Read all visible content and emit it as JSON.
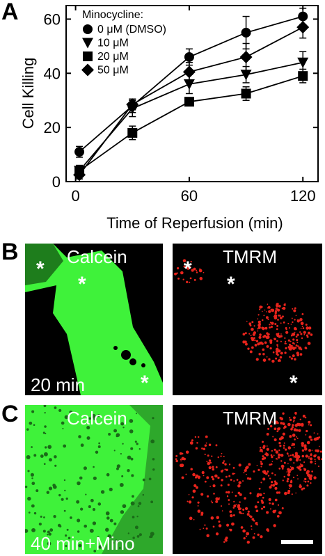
{
  "panel_labels": {
    "a": "A",
    "b": "B",
    "c": "C"
  },
  "chart_data": {
    "type": "line",
    "xlabel": "Time of Reperfusion (min)",
    "ylabel": "Cell Killing",
    "xlim": [
      -5,
      128
    ],
    "ylim": [
      0,
      65
    ],
    "xticks": [
      0,
      60,
      120
    ],
    "yticks": [
      0,
      20,
      40,
      60
    ],
    "x": [
      2,
      30,
      60,
      90,
      120
    ],
    "legend_title": "Minocycline:",
    "legend_position": "top-left",
    "series": [
      {
        "name": "0 μM (DMSO)",
        "marker": "circle",
        "values": [
          11,
          28,
          46,
          55,
          61
        ],
        "errors": [
          2,
          2.5,
          3,
          6,
          3
        ]
      },
      {
        "name": "10 μM",
        "marker": "triangle-down",
        "values": [
          4,
          27,
          36,
          39.5,
          44
        ],
        "errors": [
          2,
          3,
          3.5,
          3,
          4
        ]
      },
      {
        "name": "20 μM",
        "marker": "square",
        "values": [
          4,
          18,
          29.5,
          32.5,
          39
        ],
        "errors": [
          2,
          2.5,
          1.5,
          2.5,
          2.5
        ]
      },
      {
        "name": "50 μM",
        "marker": "diamond",
        "values": [
          2.5,
          28.5,
          40.5,
          46,
          57
        ],
        "errors": [
          1.5,
          2,
          3.5,
          5,
          4
        ]
      }
    ]
  },
  "panel_b": {
    "left_label": "Calcein",
    "right_label": "TMRM",
    "time_label": "20 min",
    "star": "*"
  },
  "panel_c": {
    "left_label": "Calcein",
    "right_label": "TMRM",
    "time_label": "40 min+Mino"
  },
  "colors": {
    "calcein": "#3ff23a",
    "tmrm": "#e8241c",
    "background": "#000000"
  }
}
